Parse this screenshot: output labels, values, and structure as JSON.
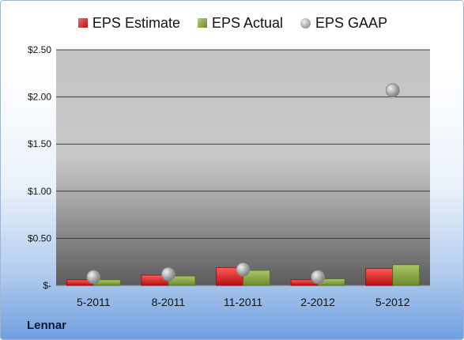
{
  "chart_data": {
    "type": "bar",
    "title": "",
    "xlabel": "",
    "ylabel": "",
    "categories": [
      "5-2011",
      "8-2011",
      "11-2011",
      "2-2012",
      "5-2012"
    ],
    "series": [
      {
        "name": "EPS Estimate",
        "kind": "bar",
        "color": "#d62222",
        "values": [
          0.06,
          0.11,
          0.19,
          0.06,
          0.18
        ]
      },
      {
        "name": "EPS Actual",
        "kind": "bar",
        "color": "#8fae46",
        "values": [
          0.06,
          0.1,
          0.16,
          0.07,
          0.22
        ]
      },
      {
        "name": "EPS GAAP",
        "kind": "point",
        "color": "#a8a8a8",
        "values": [
          0.09,
          0.12,
          0.17,
          0.09,
          2.07
        ]
      }
    ],
    "ylim": [
      0,
      2.5
    ],
    "yticks": [
      0,
      0.5,
      1.0,
      1.5,
      2.0,
      2.5
    ],
    "ytick_labels": [
      "$-",
      "$0.50",
      "$1.00",
      "$1.50",
      "$2.00",
      "$2.50"
    ],
    "grid": true,
    "legend_position": "top"
  },
  "footer": {
    "company": "Lennar"
  }
}
